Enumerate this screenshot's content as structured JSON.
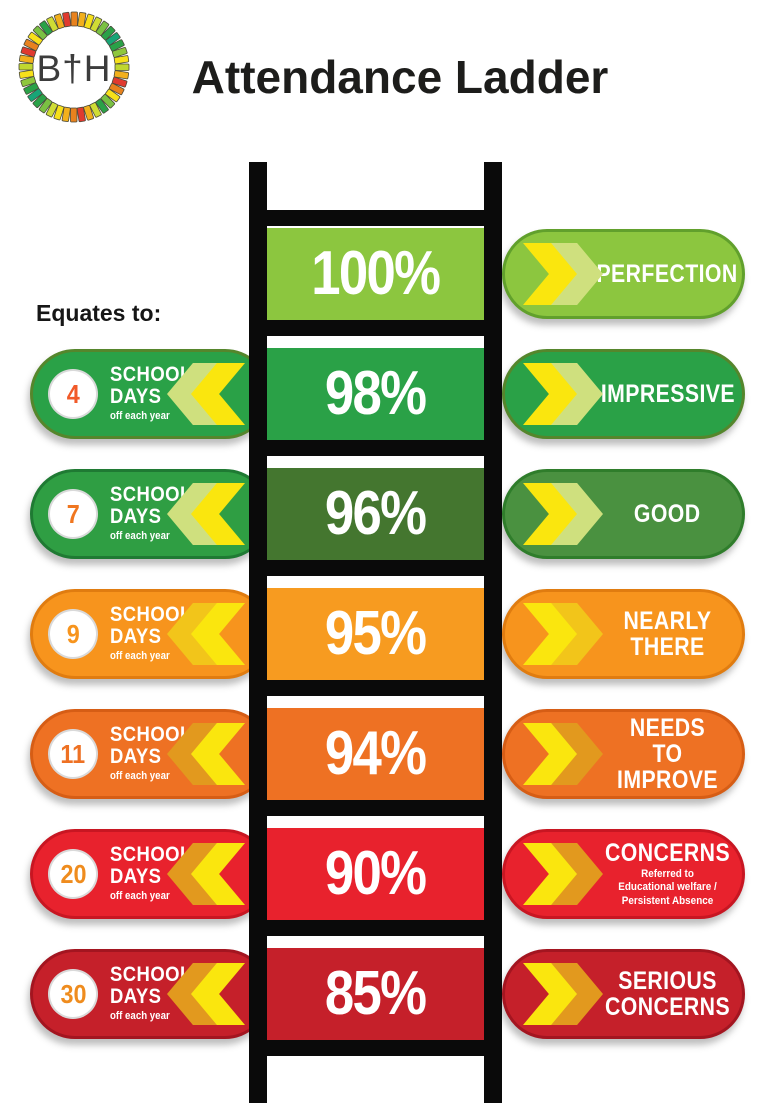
{
  "logo": {
    "text": "B†H",
    "palette": [
      "#e8821e",
      "#f2b01c",
      "#f7e01a",
      "#cfdc35",
      "#7ac143",
      "#2aa148",
      "#18a577",
      "#2aa148",
      "#8fc73e",
      "#f7e01a",
      "#c0d72f",
      "#f2b01c",
      "#e03a2f",
      "#e8821e",
      "#f7e01a",
      "#7ac143",
      "#2aa148",
      "#cfdc35",
      "#f2b01c",
      "#e03a2f"
    ]
  },
  "title": "Attendance Ladder",
  "equates_label": "Equates to:",
  "chevron_front": "#fae60e",
  "left_pill_text": {
    "line1": "SCHOOL",
    "line2": "DAYS",
    "line3": "off each year"
  },
  "ladder": {
    "rows": [
      {
        "percent": "100%",
        "box_color": "#8cc63f",
        "chev_back": "#cfe07e",
        "right": {
          "label": "PERFECTION",
          "color": "#8cc63f",
          "border": "#61a02c"
        }
      },
      {
        "percent": "98%",
        "box_color": "#2aa147",
        "chev_back": "#cfe07e",
        "left": {
          "days": "4",
          "color": "#2aa147",
          "border": "#55862c",
          "num_color": "#f15a29"
        },
        "right": {
          "label": "IMPRESSIVE",
          "color": "#2aa147",
          "border": "#55862c"
        }
      },
      {
        "percent": "96%",
        "box_color": "#44762f",
        "chev_back": "#cfe07e",
        "left": {
          "days": "7",
          "color": "#2f9e43",
          "border": "#1f7a33",
          "num_color": "#f0761f"
        },
        "right": {
          "label": "GOOD",
          "color": "#4a9140",
          "border": "#2f7d2b"
        }
      },
      {
        "percent": "95%",
        "box_color": "#f79b20",
        "chev_back": "#f2c51a",
        "left": {
          "days": "9",
          "color": "#f7941d",
          "border": "#e07c10",
          "num_color": "#f7941d"
        },
        "right": {
          "label": "NEARLY THERE",
          "color": "#f7941d",
          "border": "#e07c10"
        }
      },
      {
        "percent": "94%",
        "box_color": "#ee7123",
        "chev_back": "#e2991e",
        "left": {
          "days": "11",
          "color": "#ee7123",
          "border": "#d65d15",
          "num_color": "#ee7123"
        },
        "right": {
          "label": "NEEDS TO IMPROVE",
          "color": "#ee7123",
          "border": "#d65d15"
        }
      },
      {
        "percent": "90%",
        "box_color": "#e8222d",
        "chev_back": "#e2991e",
        "left": {
          "days": "20",
          "color": "#e8222d",
          "border": "#c81622",
          "num_color": "#ef8c1e"
        },
        "right": {
          "label": "CONCERNS",
          "sublabel": "Referred to Educational welfare / Persistent Absence",
          "color": "#e8222d",
          "border": "#c81622"
        }
      },
      {
        "percent": "85%",
        "box_color": "#c5202a",
        "chev_back": "#e2991e",
        "left": {
          "days": "30",
          "color": "#c5202a",
          "border": "#a31520",
          "num_color": "#ef8c1e"
        },
        "right": {
          "label": "SERIOUS CONCERNS",
          "color": "#c5202a",
          "border": "#a31520"
        }
      }
    ]
  }
}
